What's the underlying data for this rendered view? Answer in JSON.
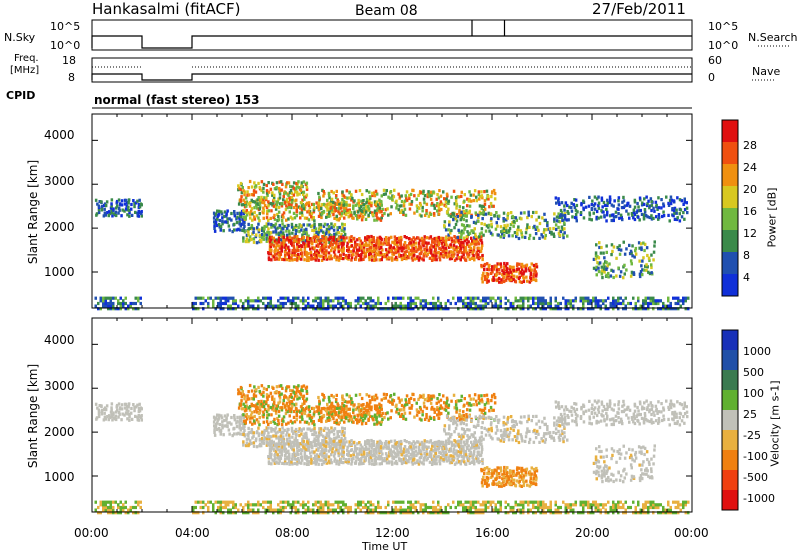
{
  "header": {
    "station": "Hankasalmi (fitACF)",
    "beam": "Beam 08",
    "date": "27/Feb/2011"
  },
  "sky_panel": {
    "left_label": "N.Sky",
    "right_label": "N.Search",
    "left_ticks": [
      "10^5",
      "10^0"
    ],
    "right_ticks": [
      "10^5",
      "10^0"
    ]
  },
  "freq_panel": {
    "label_line1": "Freq.",
    "label_line2": "[MHz]",
    "left_ticks": [
      "18",
      "8"
    ],
    "right_ticks": [
      "60",
      "0"
    ],
    "right_label": "Nave"
  },
  "cpid": {
    "label": "CPID",
    "value": "normal (fast stereo) 153"
  },
  "colors": {
    "power": [
      "#1030d8",
      "#2050b0",
      "#3a8a4a",
      "#70b840",
      "#d8c820",
      "#f09010",
      "#f05010",
      "#e01010"
    ],
    "velocity": [
      "#1830b8",
      "#2050a8",
      "#3a7a50",
      "#60b030",
      "#c0c0b8",
      "#e8b040",
      "#f08010",
      "#f04010",
      "#e01010"
    ],
    "gray": "#c8c8c0"
  },
  "chart_data": [
    {
      "type": "heatmap",
      "name": "power",
      "xlabel": "Time UT",
      "ylabel": "Slant Range [km]",
      "xlim_hours": [
        0,
        24
      ],
      "ylim_km": [
        180,
        4600
      ],
      "xticks": [
        "00:00",
        "04:00",
        "08:00",
        "12:00",
        "16:00",
        "20:00",
        "00:00"
      ],
      "yticks": [
        1000,
        2000,
        3000,
        4000
      ],
      "colorbar": {
        "label": "Power [dB]",
        "ticks": [
          "4",
          "8",
          "12",
          "16",
          "20",
          "24",
          "28"
        ],
        "range": [
          0,
          30
        ]
      }
    },
    {
      "type": "heatmap",
      "name": "velocity",
      "xlabel": "Time UT",
      "ylabel": "Slant Range [km]",
      "xlim_hours": [
        0,
        24
      ],
      "ylim_km": [
        180,
        4600
      ],
      "xticks": [
        "00:00",
        "04:00",
        "08:00",
        "12:00",
        "16:00",
        "20:00",
        "00:00"
      ],
      "yticks": [
        1000,
        2000,
        3000,
        4000
      ],
      "colorbar": {
        "label": "Velocity [m s-1]",
        "ticks": [
          "1000",
          "500",
          "100",
          "25",
          "-25",
          "-100",
          "-500",
          "-1000"
        ]
      }
    }
  ],
  "x_axis_title": "Time UT"
}
